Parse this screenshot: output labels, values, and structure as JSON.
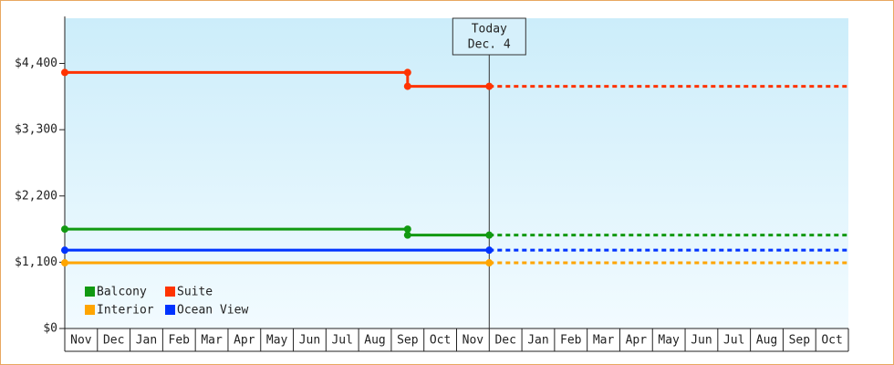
{
  "chart_data": {
    "type": "step-line",
    "today_label": [
      "Today",
      "Dec. 4"
    ],
    "today_x": 13,
    "categories": [
      "Nov",
      "Dec",
      "Jan",
      "Feb",
      "Mar",
      "Apr",
      "May",
      "Jun",
      "Jul",
      "Aug",
      "Sep",
      "Oct",
      "Nov",
      "Dec",
      "Jan",
      "Feb",
      "Mar",
      "Apr",
      "May",
      "Jun",
      "Jul",
      "Aug",
      "Sep",
      "Oct"
    ],
    "xlim": [
      0,
      24
    ],
    "ylim": [
      0,
      5150
    ],
    "yticks": [
      {
        "value": 0,
        "label": "$0"
      },
      {
        "value": 1100,
        "label": "$1,100"
      },
      {
        "value": 2200,
        "label": "$2,200"
      },
      {
        "value": 3300,
        "label": "$3,300"
      },
      {
        "value": 4400,
        "label": "$4,400"
      }
    ],
    "series": [
      {
        "name": "Balcony",
        "color": "#119911",
        "x": [
          0,
          10.5,
          10.5,
          13
        ],
        "values": [
          1650,
          1650,
          1550,
          1550
        ]
      },
      {
        "name": "Suite",
        "color": "#ff3300",
        "x": [
          0,
          10.5,
          10.5,
          13
        ],
        "values": [
          4250,
          4250,
          4020,
          4020
        ]
      },
      {
        "name": "Interior",
        "color": "#ffa500",
        "x": [
          0,
          13
        ],
        "values": [
          1090,
          1090
        ]
      },
      {
        "name": "Ocean View",
        "color": "#0033ff",
        "x": [
          0,
          13
        ],
        "values": [
          1300,
          1300
        ]
      }
    ]
  }
}
